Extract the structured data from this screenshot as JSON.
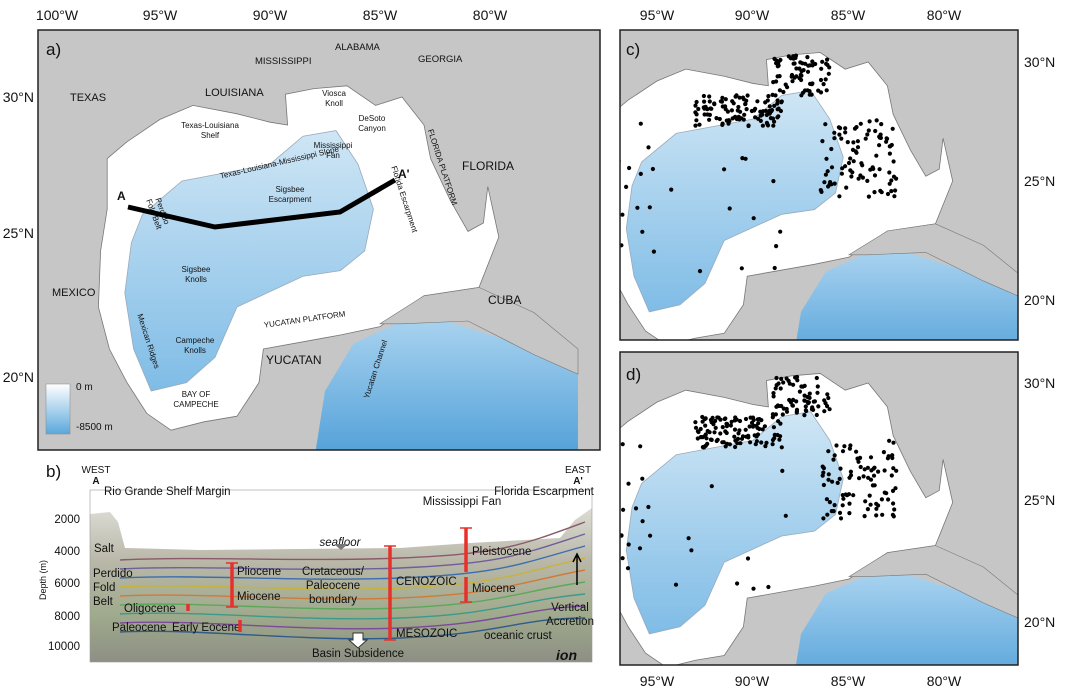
{
  "panel_a": {
    "label": "a)",
    "lon_ticks": [
      "100°W",
      "95°W",
      "90°W",
      "85°W",
      "80°W"
    ],
    "lat_ticks": [
      "30°N",
      "25°N",
      "20°N"
    ],
    "places": [
      "TEXAS",
      "LOUISIANA",
      "MISSISSIPPI",
      "ALABAMA",
      "GEORGIA",
      "FLORIDA",
      "MEXICO",
      "CUBA",
      "YUCATAN"
    ],
    "features": {
      "tx_shelf": [
        "Texas-Louisiana",
        "Shelf"
      ],
      "slope": "Texas-Louisiana-Mississippi Slope",
      "viosca": [
        "Viosca",
        "Knoll"
      ],
      "desoto": [
        "DeSoto",
        "Canyon"
      ],
      "fan": [
        "Mississippi",
        "Fan"
      ],
      "fl_esc": "Florida Escarpment",
      "fl_plat": "FLORIDA PLATFORM",
      "sigsbee_esc": [
        "Sigsbee",
        "Escarpment"
      ],
      "perdido": [
        "Perdido",
        "Fold Belt"
      ],
      "knolls": [
        "Sigsbee",
        "Knolls"
      ],
      "yuc_plat": "YUCATAN PLATFORM",
      "yuc_chan": "Yucatan Channel",
      "campeche": [
        "Campeche",
        "Knolls"
      ],
      "ridges": "Mexican Ridges",
      "bay": [
        "BAY OF",
        "CAMPECHE"
      ]
    },
    "section_ends": [
      "A",
      "A'"
    ],
    "legend": [
      "0 m",
      "-8500 m"
    ]
  },
  "panel_b": {
    "label": "b)",
    "west": [
      "WEST",
      "A"
    ],
    "east": [
      "EAST",
      "A'"
    ],
    "y_label": "Depth (m)",
    "yticks": [
      "2000",
      "4000",
      "6000",
      "8000",
      "10000"
    ],
    "labels": {
      "rio": "Rio Grande Shelf Margin",
      "fan": "Mississippi Fan",
      "esc": "Florida Escarpment",
      "salt": "Salt",
      "seafloor": "seafloor",
      "perdido": [
        "Perdido",
        "Fold",
        "Belt"
      ],
      "pliocene": "Pliocene",
      "miocene": "Miocene",
      "oligocene": "Oligocene",
      "paleocene": "Paleocene",
      "eocene": "Early Eocene",
      "kpg": [
        "Cretaceous/",
        "Paleocene",
        "boundary"
      ],
      "cenozoic": "CENOZOIC",
      "mesozoic": "MESOZOIC",
      "pleistocene": "Pleistocene",
      "miocene2": "Miocene",
      "vertical": [
        "Vertical",
        "Accretion"
      ],
      "crust": "oceanic crust",
      "subsidence": "Basin Subsidence",
      "logo": "ion"
    }
  },
  "panel_c": {
    "label": "c)",
    "lon_ticks": [
      "95°W",
      "90°W",
      "85°W",
      "80°W"
    ],
    "lat_ticks": [
      "30°N",
      "25°N",
      "20°N"
    ]
  },
  "panel_d": {
    "label": "d)",
    "lon_ticks": [
      "95°W",
      "90°W",
      "85°W",
      "80°W"
    ],
    "lat_ticks": [
      "30°N",
      "25°N",
      "20°N"
    ]
  }
}
